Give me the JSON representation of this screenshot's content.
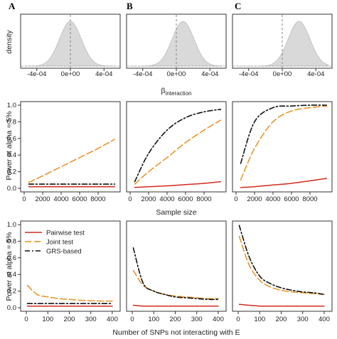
{
  "panel_letters": [
    "A",
    "B",
    "C"
  ],
  "colors": {
    "pairwise": "#d42a20",
    "joint": "#e8901e",
    "grs": "#111111",
    "density_fill": "#d9d9d9",
    "frame": "#333333"
  },
  "labels": {
    "density_ylabel": "density",
    "beta_symbol": "β",
    "beta_subscript": "interaction",
    "power_ylabel": "Power at alpha = 5%",
    "sample_xlabel": "Sample size",
    "snp_xlabel": "Number of SNPs not interacting with E"
  },
  "legend": [
    {
      "label": "Pairwise test",
      "series": "pairwise"
    },
    {
      "label": "Joint test",
      "series": "joint"
    },
    {
      "label": "GRS-based",
      "series": "grs"
    }
  ],
  "chart_data": [
    {
      "type": "area",
      "panel": "A",
      "row": "density",
      "x_ticks": [
        "-4e-04",
        "0e+00",
        "4e-04"
      ],
      "x_tick_values": [
        -0.0004,
        0,
        0.0004
      ],
      "xlim": [
        -0.00055,
        0.00055
      ],
      "center": 0.0,
      "sd": 0.00013,
      "dashed_x": 0.0
    },
    {
      "type": "area",
      "panel": "B",
      "row": "density",
      "x_ticks": [
        "-4e-04",
        "0e+00",
        "4e-04"
      ],
      "x_tick_values": [
        -0.0004,
        0,
        0.0004
      ],
      "xlim": [
        -0.00055,
        0.00055
      ],
      "center": 8e-05,
      "sd": 0.00013,
      "dashed_x": 0.0
    },
    {
      "type": "area",
      "panel": "C",
      "row": "density",
      "x_ticks": [
        "-4e-04",
        "0e+00",
        "4e-04"
      ],
      "x_tick_values": [
        -0.0004,
        0,
        0.0004
      ],
      "xlim": [
        -0.00055,
        0.00055
      ],
      "center": 0.0002,
      "sd": 0.00013,
      "dashed_x": 0.0
    },
    {
      "type": "line",
      "panel": "A",
      "row": "sample_size",
      "x": [
        500,
        2000,
        4000,
        6000,
        8000,
        9800
      ],
      "xlim": [
        0,
        10000
      ],
      "ylim": [
        0,
        1
      ],
      "x_ticks": [
        "0",
        "2000",
        "4000",
        "6000",
        "8000"
      ],
      "x_tick_values": [
        0,
        2000,
        4000,
        6000,
        8000
      ],
      "y_ticks": [
        "0.0",
        "0.2",
        "0.4",
        "0.6",
        "0.8",
        "1.0"
      ],
      "y_tick_values": [
        0,
        0.2,
        0.4,
        0.6,
        0.8,
        1.0
      ],
      "series": [
        {
          "key": "pairwise",
          "values": [
            0.02,
            0.02,
            0.02,
            0.02,
            0.02,
            0.02
          ]
        },
        {
          "key": "joint",
          "values": [
            0.07,
            0.15,
            0.26,
            0.37,
            0.48,
            0.59
          ]
        },
        {
          "key": "grs",
          "values": [
            0.05,
            0.05,
            0.05,
            0.05,
            0.05,
            0.05
          ]
        }
      ]
    },
    {
      "type": "line",
      "panel": "B",
      "row": "sample_size",
      "x": [
        500,
        2000,
        4000,
        6000,
        8000,
        9800
      ],
      "xlim": [
        0,
        10000
      ],
      "ylim": [
        0,
        1
      ],
      "x_ticks": [
        "0",
        "2000",
        "4000",
        "6000",
        "8000"
      ],
      "x_tick_values": [
        0,
        2000,
        4000,
        6000,
        8000
      ],
      "y_ticks": [
        "0.0",
        "0.2",
        "0.4",
        "0.6",
        "0.8",
        "1.0"
      ],
      "y_tick_values": [
        0,
        0.2,
        0.4,
        0.6,
        0.8,
        1.0
      ],
      "series": [
        {
          "key": "pairwise",
          "values": [
            0.01,
            0.02,
            0.03,
            0.045,
            0.06,
            0.08
          ]
        },
        {
          "key": "joint",
          "values": [
            0.05,
            0.2,
            0.37,
            0.55,
            0.7,
            0.82
          ]
        },
        {
          "key": "grs",
          "values": [
            0.08,
            0.42,
            0.7,
            0.85,
            0.92,
            0.95
          ]
        }
      ]
    },
    {
      "type": "line",
      "panel": "C",
      "row": "sample_size",
      "x": [
        500,
        2000,
        4000,
        6000,
        8000,
        9800
      ],
      "xlim": [
        0,
        10000
      ],
      "ylim": [
        0,
        1
      ],
      "x_ticks": [
        "0",
        "2000",
        "4000",
        "6000",
        "8000"
      ],
      "x_tick_values": [
        0,
        2000,
        4000,
        6000,
        8000
      ],
      "y_ticks": [
        "0.0",
        "0.2",
        "0.4",
        "0.6",
        "0.8",
        "1.0"
      ],
      "y_tick_values": [
        0,
        0.2,
        0.4,
        0.6,
        0.8,
        1.0
      ],
      "series": [
        {
          "key": "pairwise",
          "values": [
            0.01,
            0.02,
            0.04,
            0.06,
            0.09,
            0.12
          ]
        },
        {
          "key": "joint",
          "values": [
            0.1,
            0.48,
            0.8,
            0.93,
            0.97,
            0.99
          ]
        },
        {
          "key": "grs",
          "values": [
            0.3,
            0.8,
            0.97,
            0.99,
            1.0,
            1.0
          ]
        }
      ]
    },
    {
      "type": "line",
      "panel": "A",
      "row": "snps",
      "x": [
        5,
        50,
        100,
        150,
        200,
        250,
        300,
        350,
        400
      ],
      "xlim": [
        -10,
        420
      ],
      "ylim": [
        0,
        1
      ],
      "x_ticks": [
        "0",
        "100",
        "200",
        "300",
        "400"
      ],
      "x_tick_values": [
        0,
        100,
        200,
        300,
        400
      ],
      "y_ticks": [
        "0.0",
        "0.2",
        "0.4",
        "0.6",
        "0.8",
        "1.0"
      ],
      "y_tick_values": [
        0,
        0.2,
        0.4,
        0.6,
        0.8,
        1.0
      ],
      "series": [
        {
          "key": "pairwise",
          "values": [
            0.02,
            0.02,
            0.02,
            0.02,
            0.02,
            0.02,
            0.02,
            0.02,
            0.02
          ]
        },
        {
          "key": "joint",
          "values": [
            0.27,
            0.16,
            0.13,
            0.11,
            0.1,
            0.09,
            0.085,
            0.08,
            0.08
          ]
        },
        {
          "key": "grs",
          "values": [
            0.05,
            0.05,
            0.05,
            0.05,
            0.05,
            0.05,
            0.05,
            0.05,
            0.05
          ]
        }
      ]
    },
    {
      "type": "line",
      "panel": "B",
      "row": "snps",
      "x": [
        5,
        50,
        100,
        150,
        200,
        250,
        300,
        350,
        400
      ],
      "xlim": [
        -10,
        420
      ],
      "ylim": [
        0,
        1
      ],
      "x_ticks": [
        "0",
        "100",
        "200",
        "300",
        "400"
      ],
      "x_tick_values": [
        0,
        100,
        200,
        300,
        400
      ],
      "y_ticks": [
        "0.0",
        "0.2",
        "0.4",
        "0.6",
        "0.8",
        "1.0"
      ],
      "y_tick_values": [
        0,
        0.2,
        0.4,
        0.6,
        0.8,
        1.0
      ],
      "series": [
        {
          "key": "pairwise",
          "values": [
            0.03,
            0.02,
            0.02,
            0.02,
            0.02,
            0.02,
            0.02,
            0.02,
            0.02
          ]
        },
        {
          "key": "joint",
          "values": [
            0.45,
            0.27,
            0.2,
            0.16,
            0.14,
            0.13,
            0.12,
            0.11,
            0.11
          ]
        },
        {
          "key": "grs",
          "values": [
            0.72,
            0.3,
            0.2,
            0.16,
            0.13,
            0.12,
            0.11,
            0.1,
            0.1
          ]
        }
      ]
    },
    {
      "type": "line",
      "panel": "C",
      "row": "snps",
      "x": [
        5,
        50,
        100,
        150,
        200,
        250,
        300,
        350,
        400
      ],
      "xlim": [
        -10,
        420
      ],
      "ylim": [
        0,
        1
      ],
      "x_ticks": [
        "0",
        "100",
        "200",
        "300",
        "400"
      ],
      "x_tick_values": [
        0,
        100,
        200,
        300,
        400
      ],
      "y_ticks": [
        "0.0",
        "0.2",
        "0.4",
        "0.6",
        "0.8",
        "1.0"
      ],
      "y_tick_values": [
        0,
        0.2,
        0.4,
        0.6,
        0.8,
        1.0
      ],
      "series": [
        {
          "key": "pairwise",
          "values": [
            0.04,
            0.03,
            0.02,
            0.02,
            0.02,
            0.02,
            0.02,
            0.02,
            0.02
          ]
        },
        {
          "key": "joint",
          "values": [
            0.86,
            0.52,
            0.33,
            0.25,
            0.21,
            0.19,
            0.18,
            0.17,
            0.16
          ]
        },
        {
          "key": "grs",
          "values": [
            0.99,
            0.62,
            0.38,
            0.29,
            0.24,
            0.21,
            0.19,
            0.18,
            0.16
          ]
        }
      ]
    }
  ]
}
